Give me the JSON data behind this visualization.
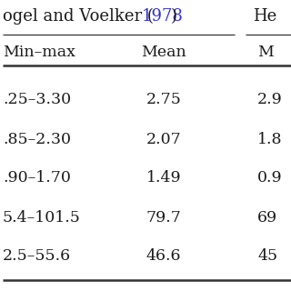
{
  "header_plain": "ogel and Voelker (",
  "header_year": "1978",
  "header_suffix": ")",
  "header_right": "He",
  "col1_header": "Min–max",
  "col2_header": "Mean",
  "col3_header": "M",
  "rows": [
    [
      ".25–3.30",
      "2.75",
      "2.9"
    ],
    [
      ".85–2.30",
      "2.07",
      "1.8"
    ],
    [
      ".90–1.70",
      "1.49",
      "0.9"
    ],
    [
      "5.4–101.5",
      "79.7",
      "69"
    ],
    [
      "2.5–55.6",
      "46.6",
      "45"
    ]
  ],
  "background_color": "#ffffff",
  "text_color": "#1a1a1a",
  "year_color": "#3333cc",
  "line_color": "#333333",
  "font_size": 12.5,
  "header_font_size": 13.0
}
